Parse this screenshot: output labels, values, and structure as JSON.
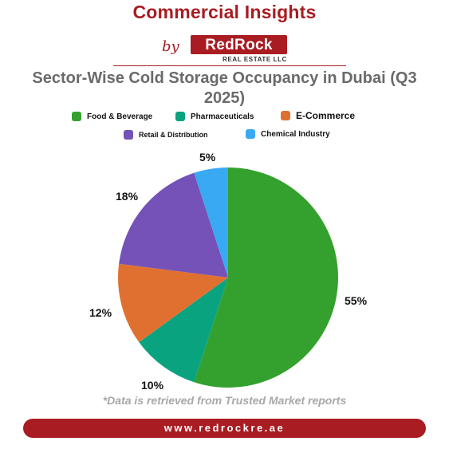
{
  "header": {
    "heading": "Commercial Insights",
    "byline": "by",
    "brand_name": "RedRock",
    "brand_sub": "REAL ESTATE LLC"
  },
  "colors": {
    "brand": "#a81c22",
    "title": "#6a6a6a",
    "footnote": "#a8a8a8"
  },
  "chart_data": {
    "type": "pie",
    "title": "Sector-Wise Cold Storage Occupancy in Dubai (Q3 2025)",
    "legend_position": "top",
    "slices": [
      {
        "label": "Food & Beverage",
        "value": 55,
        "value_label": "55%",
        "color": "#34a12e"
      },
      {
        "label": "Pharmaceuticals",
        "value": 10,
        "value_label": "10%",
        "color": "#0aa37f"
      },
      {
        "label": "E-Commerce",
        "value": 12,
        "value_label": "12%",
        "color": "#e07030"
      },
      {
        "label": "Retail & Distribution",
        "value": 18,
        "value_label": "18%",
        "color": "#7452b8"
      },
      {
        "label": "Chemical Industry",
        "value": 5,
        "value_label": "5%",
        "color": "#3aa9f4"
      }
    ]
  },
  "footer": {
    "note": "*Data is retrieved from Trusted Market reports",
    "url": "www.redrockre.ae"
  }
}
